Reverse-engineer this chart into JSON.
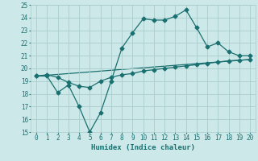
{
  "xlabel": "Humidex (Indice chaleur)",
  "bg_color": "#cce8e8",
  "grid_color": "#aacccc",
  "line_color": "#1a7070",
  "xlim": [
    -0.5,
    20.5
  ],
  "ylim": [
    15,
    25
  ],
  "xticks": [
    0,
    1,
    2,
    3,
    4,
    5,
    6,
    7,
    8,
    9,
    10,
    11,
    12,
    13,
    14,
    15,
    16,
    17,
    18,
    19,
    20
  ],
  "yticks": [
    15,
    16,
    17,
    18,
    19,
    20,
    21,
    22,
    23,
    24,
    25
  ],
  "line1_x": [
    0,
    1,
    2,
    3,
    4,
    5,
    6,
    7,
    8,
    9,
    10,
    11,
    12,
    13,
    14,
    15,
    16,
    17,
    18,
    19,
    20
  ],
  "line1_y": [
    19.4,
    19.4,
    18.1,
    18.7,
    17.0,
    15.0,
    16.5,
    19.0,
    21.6,
    22.8,
    23.9,
    23.8,
    23.8,
    24.1,
    24.6,
    23.2,
    21.7,
    22.0,
    21.3,
    21.0,
    21.0
  ],
  "line2_x": [
    0,
    1,
    2,
    3,
    4,
    5,
    6,
    7,
    8,
    9,
    10,
    11,
    12,
    13,
    14,
    15,
    16,
    17,
    18,
    19,
    20
  ],
  "line2_y": [
    19.4,
    19.5,
    19.3,
    18.9,
    18.6,
    18.5,
    19.0,
    19.3,
    19.5,
    19.6,
    19.8,
    19.9,
    20.0,
    20.1,
    20.2,
    20.3,
    20.4,
    20.5,
    20.6,
    20.65,
    20.7
  ],
  "line3_x": [
    0,
    20
  ],
  "line3_y": [
    19.4,
    20.7
  ],
  "marker": "D",
  "markersize": 2.5,
  "linewidth": 0.9
}
